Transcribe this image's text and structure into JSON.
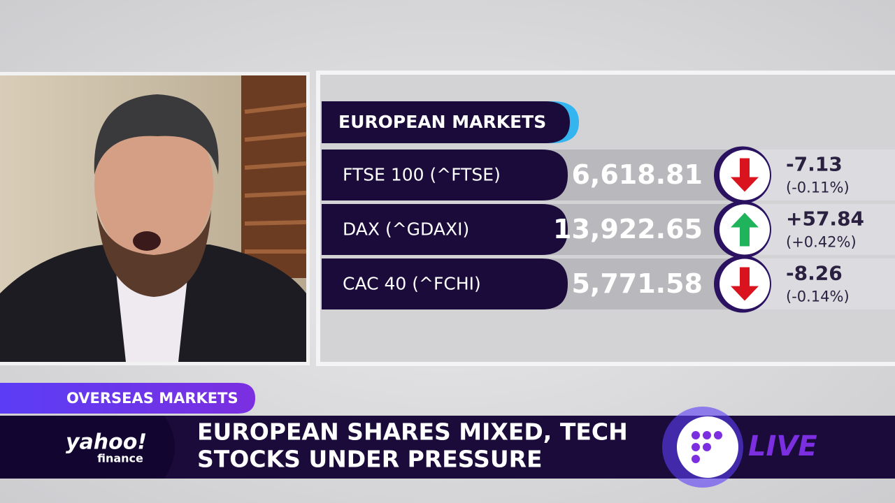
{
  "panel": {
    "title": "EUROPEAN MARKETS",
    "rows": [
      {
        "name": "FTSE 100 (^FTSE)",
        "value": "6,618.81",
        "change": "-7.13",
        "percent": "(-0.11%)"
      },
      {
        "name": "DAX (^GDAXI)",
        "value": "13,922.65",
        "change": "+57.84",
        "percent": "(+0.42%)"
      },
      {
        "name": "CAC 40 (^FCHI)",
        "value": "5,771.58",
        "change": "-8.26",
        "percent": "(-0.14%)"
      }
    ]
  },
  "lower_third": {
    "tag": "OVERSEAS MARKETS",
    "headline": [
      "EUROPEAN SHARES MIXED, TECH",
      "STOCKS UNDER PRESSURE"
    ],
    "logo": {
      "brand": "yahoo!",
      "sub": "finance"
    },
    "live": "LIVE"
  }
}
